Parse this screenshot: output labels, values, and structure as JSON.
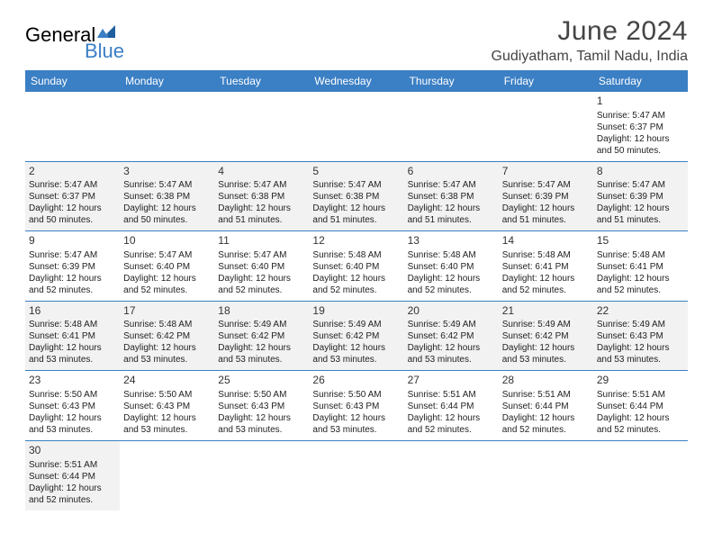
{
  "brand": {
    "part1": "General",
    "part2": "Blue"
  },
  "title": "June 2024",
  "location": "Gudiyatham, Tamil Nadu, India",
  "header_bg": "#3b7fc4",
  "dayNames": [
    "Sunday",
    "Monday",
    "Tuesday",
    "Wednesday",
    "Thursday",
    "Friday",
    "Saturday"
  ],
  "weeks": [
    [
      null,
      null,
      null,
      null,
      null,
      null,
      {
        "n": "1",
        "sr": "5:47 AM",
        "ss": "6:37 PM",
        "dl": "12 hours and 50 minutes."
      }
    ],
    [
      {
        "n": "2",
        "sr": "5:47 AM",
        "ss": "6:37 PM",
        "dl": "12 hours and 50 minutes."
      },
      {
        "n": "3",
        "sr": "5:47 AM",
        "ss": "6:38 PM",
        "dl": "12 hours and 50 minutes."
      },
      {
        "n": "4",
        "sr": "5:47 AM",
        "ss": "6:38 PM",
        "dl": "12 hours and 51 minutes."
      },
      {
        "n": "5",
        "sr": "5:47 AM",
        "ss": "6:38 PM",
        "dl": "12 hours and 51 minutes."
      },
      {
        "n": "6",
        "sr": "5:47 AM",
        "ss": "6:38 PM",
        "dl": "12 hours and 51 minutes."
      },
      {
        "n": "7",
        "sr": "5:47 AM",
        "ss": "6:39 PM",
        "dl": "12 hours and 51 minutes."
      },
      {
        "n": "8",
        "sr": "5:47 AM",
        "ss": "6:39 PM",
        "dl": "12 hours and 51 minutes."
      }
    ],
    [
      {
        "n": "9",
        "sr": "5:47 AM",
        "ss": "6:39 PM",
        "dl": "12 hours and 52 minutes."
      },
      {
        "n": "10",
        "sr": "5:47 AM",
        "ss": "6:40 PM",
        "dl": "12 hours and 52 minutes."
      },
      {
        "n": "11",
        "sr": "5:47 AM",
        "ss": "6:40 PM",
        "dl": "12 hours and 52 minutes."
      },
      {
        "n": "12",
        "sr": "5:48 AM",
        "ss": "6:40 PM",
        "dl": "12 hours and 52 minutes."
      },
      {
        "n": "13",
        "sr": "5:48 AM",
        "ss": "6:40 PM",
        "dl": "12 hours and 52 minutes."
      },
      {
        "n": "14",
        "sr": "5:48 AM",
        "ss": "6:41 PM",
        "dl": "12 hours and 52 minutes."
      },
      {
        "n": "15",
        "sr": "5:48 AM",
        "ss": "6:41 PM",
        "dl": "12 hours and 52 minutes."
      }
    ],
    [
      {
        "n": "16",
        "sr": "5:48 AM",
        "ss": "6:41 PM",
        "dl": "12 hours and 53 minutes."
      },
      {
        "n": "17",
        "sr": "5:48 AM",
        "ss": "6:42 PM",
        "dl": "12 hours and 53 minutes."
      },
      {
        "n": "18",
        "sr": "5:49 AM",
        "ss": "6:42 PM",
        "dl": "12 hours and 53 minutes."
      },
      {
        "n": "19",
        "sr": "5:49 AM",
        "ss": "6:42 PM",
        "dl": "12 hours and 53 minutes."
      },
      {
        "n": "20",
        "sr": "5:49 AM",
        "ss": "6:42 PM",
        "dl": "12 hours and 53 minutes."
      },
      {
        "n": "21",
        "sr": "5:49 AM",
        "ss": "6:42 PM",
        "dl": "12 hours and 53 minutes."
      },
      {
        "n": "22",
        "sr": "5:49 AM",
        "ss": "6:43 PM",
        "dl": "12 hours and 53 minutes."
      }
    ],
    [
      {
        "n": "23",
        "sr": "5:50 AM",
        "ss": "6:43 PM",
        "dl": "12 hours and 53 minutes."
      },
      {
        "n": "24",
        "sr": "5:50 AM",
        "ss": "6:43 PM",
        "dl": "12 hours and 53 minutes."
      },
      {
        "n": "25",
        "sr": "5:50 AM",
        "ss": "6:43 PM",
        "dl": "12 hours and 53 minutes."
      },
      {
        "n": "26",
        "sr": "5:50 AM",
        "ss": "6:43 PM",
        "dl": "12 hours and 53 minutes."
      },
      {
        "n": "27",
        "sr": "5:51 AM",
        "ss": "6:44 PM",
        "dl": "12 hours and 52 minutes."
      },
      {
        "n": "28",
        "sr": "5:51 AM",
        "ss": "6:44 PM",
        "dl": "12 hours and 52 minutes."
      },
      {
        "n": "29",
        "sr": "5:51 AM",
        "ss": "6:44 PM",
        "dl": "12 hours and 52 minutes."
      }
    ],
    [
      {
        "n": "30",
        "sr": "5:51 AM",
        "ss": "6:44 PM",
        "dl": "12 hours and 52 minutes."
      },
      null,
      null,
      null,
      null,
      null,
      null
    ]
  ]
}
